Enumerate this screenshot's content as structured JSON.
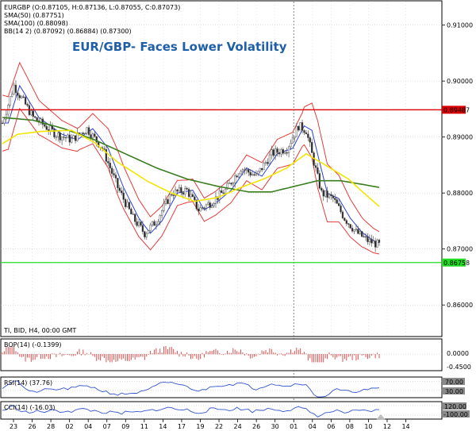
{
  "header": {
    "symbol_line": "EURGBP (O:0.87105, H:0.87136, L:0.87055, C:0.87073)",
    "sma50_line": "SMA(50) (0.87751)",
    "sma100_line": "SMA(100) (0.88098)",
    "bb_line": "BB(14 2) (0.87092) (0.86884) (0.87300)",
    "title": "EUR/GBP- Faces Lower Volatility",
    "footer_line": "TI, BID, H4, 00:00 GMT"
  },
  "colors": {
    "sma50": "#f2e600",
    "sma100": "#3a7d1e",
    "bb_bands": "#e43b3b",
    "bb_middle": "#2a3fd6",
    "resistance": "#dd0000",
    "support": "#22dd22",
    "candles": "#555555",
    "bop_bars": "#e05050",
    "rsi_line": "#3355cc",
    "cci_line": "#3355cc"
  },
  "chart_data": [
    {
      "type": "line",
      "panel": "price",
      "y_ticks": [
        "0.91000",
        "0.90000",
        "0.89000",
        "0.88000",
        "0.87000",
        "0.86000"
      ],
      "ylim": [
        0.8545,
        0.9142
      ],
      "x_tick_labels": [
        "23",
        "26",
        "28",
        "02",
        "04",
        "07",
        "09",
        "11",
        "14",
        "17",
        "19",
        "22",
        "24",
        "26",
        "30",
        "01",
        "04",
        "06",
        "08",
        "10",
        "12",
        "14"
      ],
      "horizontal_levels": [
        {
          "value": 0.89487,
          "label": "0.89487",
          "color": "#dd0000"
        },
        {
          "value": 0.86758,
          "label": "0.86758",
          "color": "#22dd22"
        }
      ],
      "anchors": [
        {
          "t": 0,
          "y": 0.8925
        },
        {
          "t": 3,
          "y": 0.8992
        },
        {
          "t": 8,
          "y": 0.8935
        },
        {
          "t": 14,
          "y": 0.8905
        },
        {
          "t": 18,
          "y": 0.8895
        },
        {
          "t": 22,
          "y": 0.8915
        },
        {
          "t": 26,
          "y": 0.888
        },
        {
          "t": 30,
          "y": 0.881
        },
        {
          "t": 34,
          "y": 0.8755
        },
        {
          "t": 37,
          "y": 0.8728
        },
        {
          "t": 40,
          "y": 0.875
        },
        {
          "t": 44,
          "y": 0.88
        },
        {
          "t": 48,
          "y": 0.8805
        },
        {
          "t": 51,
          "y": 0.877
        },
        {
          "t": 54,
          "y": 0.8782
        },
        {
          "t": 58,
          "y": 0.8805
        },
        {
          "t": 62,
          "y": 0.8845
        },
        {
          "t": 66,
          "y": 0.883
        },
        {
          "t": 70,
          "y": 0.887
        },
        {
          "t": 74,
          "y": 0.888
        },
        {
          "t": 77,
          "y": 0.892
        },
        {
          "t": 79,
          "y": 0.8912
        },
        {
          "t": 81,
          "y": 0.8855
        },
        {
          "t": 83,
          "y": 0.88
        },
        {
          "t": 86,
          "y": 0.879
        },
        {
          "t": 89,
          "y": 0.8755
        },
        {
          "t": 92,
          "y": 0.873
        },
        {
          "t": 95,
          "y": 0.8715
        },
        {
          "t": 98,
          "y": 0.8707
        }
      ],
      "sma50_values": [
        {
          "t": 0,
          "y": 0.8888
        },
        {
          "t": 4,
          "y": 0.8905
        },
        {
          "t": 10,
          "y": 0.891
        },
        {
          "t": 18,
          "y": 0.8912
        },
        {
          "t": 24,
          "y": 0.889
        },
        {
          "t": 30,
          "y": 0.8855
        },
        {
          "t": 38,
          "y": 0.882
        },
        {
          "t": 44,
          "y": 0.88
        },
        {
          "t": 50,
          "y": 0.8785
        },
        {
          "t": 56,
          "y": 0.8792
        },
        {
          "t": 62,
          "y": 0.881
        },
        {
          "t": 68,
          "y": 0.8825
        },
        {
          "t": 74,
          "y": 0.8845
        },
        {
          "t": 79,
          "y": 0.887
        },
        {
          "t": 84,
          "y": 0.885
        },
        {
          "t": 90,
          "y": 0.8825
        },
        {
          "t": 94,
          "y": 0.88
        },
        {
          "t": 98,
          "y": 0.8776
        }
      ],
      "sma100_values": [
        {
          "t": 0,
          "y": 0.8935
        },
        {
          "t": 8,
          "y": 0.893
        },
        {
          "t": 16,
          "y": 0.8915
        },
        {
          "t": 24,
          "y": 0.8895
        },
        {
          "t": 32,
          "y": 0.887
        },
        {
          "t": 40,
          "y": 0.8845
        },
        {
          "t": 48,
          "y": 0.8825
        },
        {
          "t": 56,
          "y": 0.8812
        },
        {
          "t": 64,
          "y": 0.8802
        },
        {
          "t": 70,
          "y": 0.8802
        },
        {
          "t": 76,
          "y": 0.8812
        },
        {
          "t": 82,
          "y": 0.8822
        },
        {
          "t": 88,
          "y": 0.8822
        },
        {
          "t": 94,
          "y": 0.8815
        },
        {
          "t": 98,
          "y": 0.881
        }
      ],
      "bb_width": [
        {
          "t": 0,
          "w": 0.005
        },
        {
          "t": 10,
          "w": 0.003
        },
        {
          "t": 20,
          "w": 0.002
        },
        {
          "t": 30,
          "w": 0.004
        },
        {
          "t": 38,
          "w": 0.003
        },
        {
          "t": 48,
          "w": 0.002
        },
        {
          "t": 60,
          "w": 0.0022
        },
        {
          "t": 70,
          "w": 0.0025
        },
        {
          "t": 78,
          "w": 0.003
        },
        {
          "t": 82,
          "w": 0.006
        },
        {
          "t": 88,
          "w": 0.004
        },
        {
          "t": 94,
          "w": 0.0025
        },
        {
          "t": 98,
          "w": 0.002
        }
      ],
      "cursor_x_tick": "01"
    },
    {
      "type": "bar",
      "panel": "bop",
      "label": "BOP(14) (-0.1399)",
      "y_ticks": [
        "0.0000",
        "-0.4500"
      ],
      "ylim": [
        -0.6,
        0.6
      ]
    },
    {
      "type": "line",
      "panel": "rsi",
      "label": "RSI(14) (37.76)",
      "y_ticks": [
        "70.00",
        "30.00"
      ],
      "ylim": [
        20,
        80
      ]
    },
    {
      "type": "line",
      "panel": "cci",
      "label": "CCI(14) (-16.03)",
      "y_ticks": [
        "120.00",
        "-100.00"
      ],
      "ylim": [
        -140,
        140
      ]
    }
  ]
}
